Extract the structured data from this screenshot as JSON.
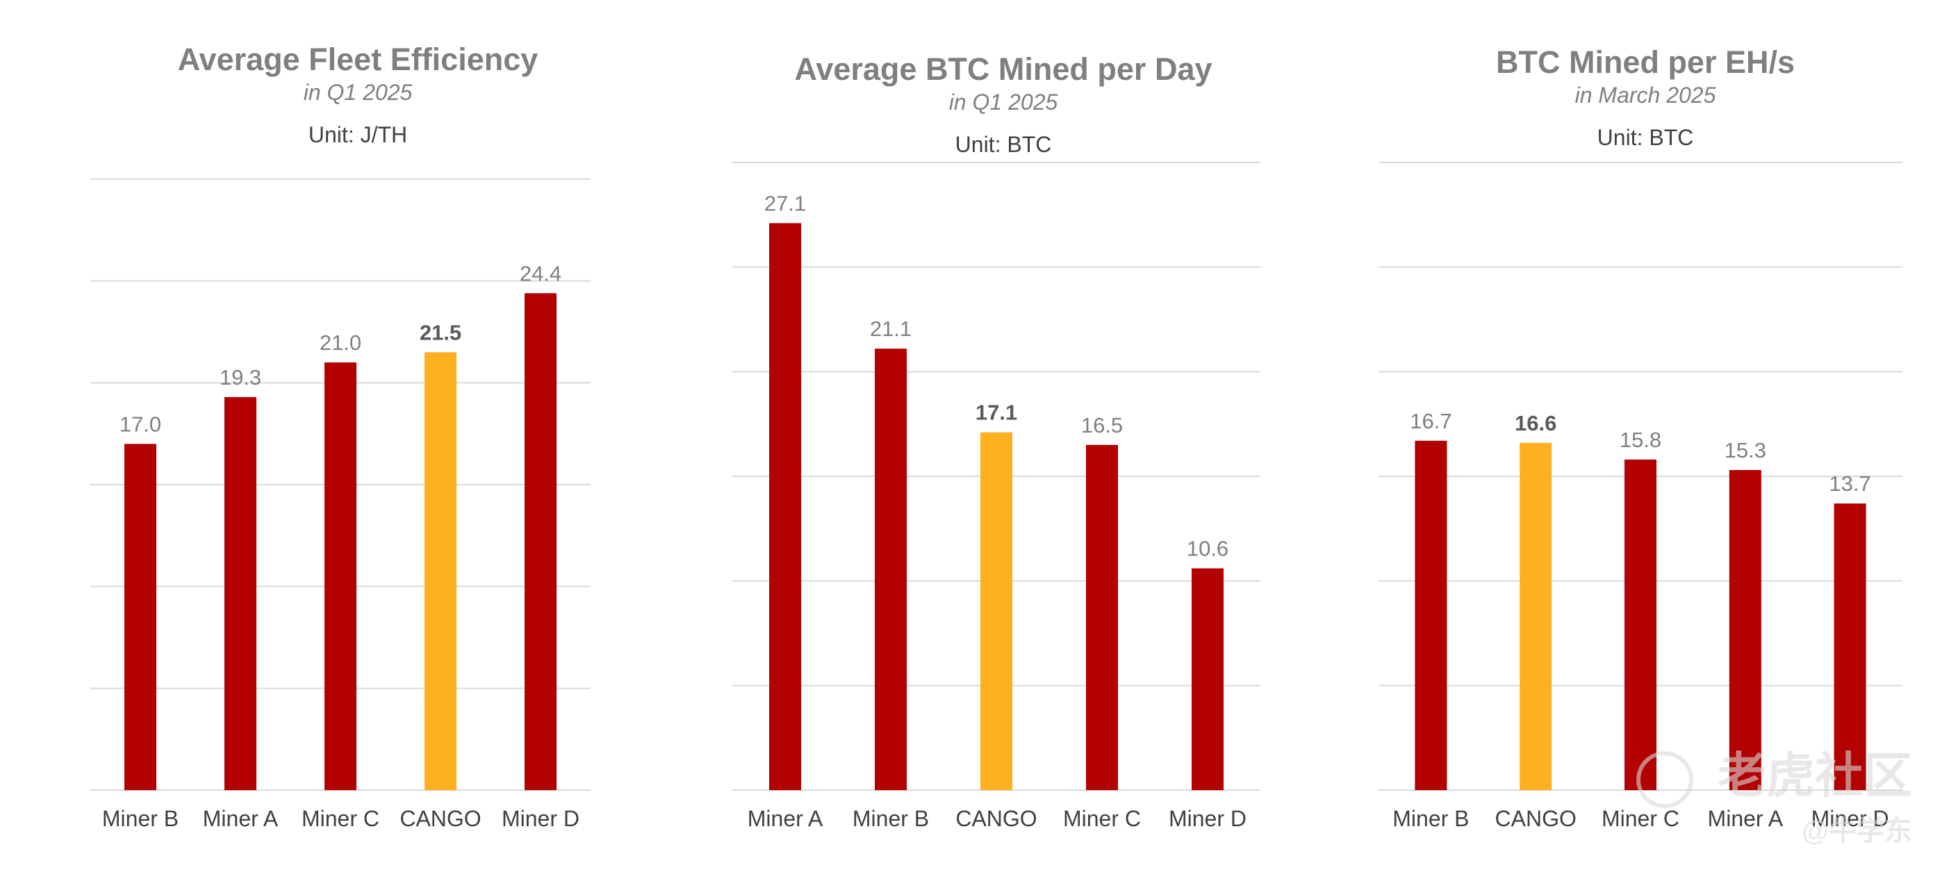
{
  "chart_data": [
    {
      "type": "bar",
      "title": "Average Fleet Efficiency",
      "subtitle": "in Q1 2025",
      "unit": "Unit: J/TH",
      "categories": [
        "Miner B",
        "Miner A",
        "Miner C",
        "CANGO",
        "Miner D"
      ],
      "values": [
        17.0,
        19.3,
        21.0,
        21.5,
        24.4
      ],
      "data_labels": [
        "17.0",
        "19.3",
        "21.0",
        "21.5",
        "24.4"
      ],
      "highlight": "CANGO",
      "ylim": [
        0,
        30
      ],
      "grid": true,
      "bar_color": "#b30000",
      "highlight_color": "#ffb020"
    },
    {
      "type": "bar",
      "title": "Average BTC Mined per Day",
      "subtitle": "in Q1 2025",
      "unit": "Unit: BTC",
      "categories": [
        "Miner A",
        "Miner B",
        "CANGO",
        "Miner C",
        "Miner D"
      ],
      "values": [
        27.1,
        21.1,
        17.1,
        16.5,
        10.6
      ],
      "data_labels": [
        "27.1",
        "21.1",
        "17.1",
        "16.5",
        "10.6"
      ],
      "highlight": "CANGO",
      "ylim": [
        0,
        30
      ],
      "grid": true,
      "bar_color": "#b30000",
      "highlight_color": "#ffb020"
    },
    {
      "type": "bar",
      "title": "BTC Mined per EH/s",
      "subtitle": "in March 2025",
      "unit": "Unit: BTC",
      "categories": [
        "Miner B",
        "CANGO",
        "Miner C",
        "Miner A",
        "Miner D"
      ],
      "values": [
        16.7,
        16.6,
        15.8,
        15.3,
        13.7
      ],
      "data_labels": [
        "16.7",
        "16.6",
        "15.8",
        "15.3",
        "13.7"
      ],
      "highlight": "CANGO",
      "ylim": [
        0,
        30
      ],
      "grid": true,
      "bar_color": "#b30000",
      "highlight_color": "#ffb020"
    }
  ],
  "watermark": {
    "text": "老虎社区",
    "handle": "@牛学东"
  }
}
